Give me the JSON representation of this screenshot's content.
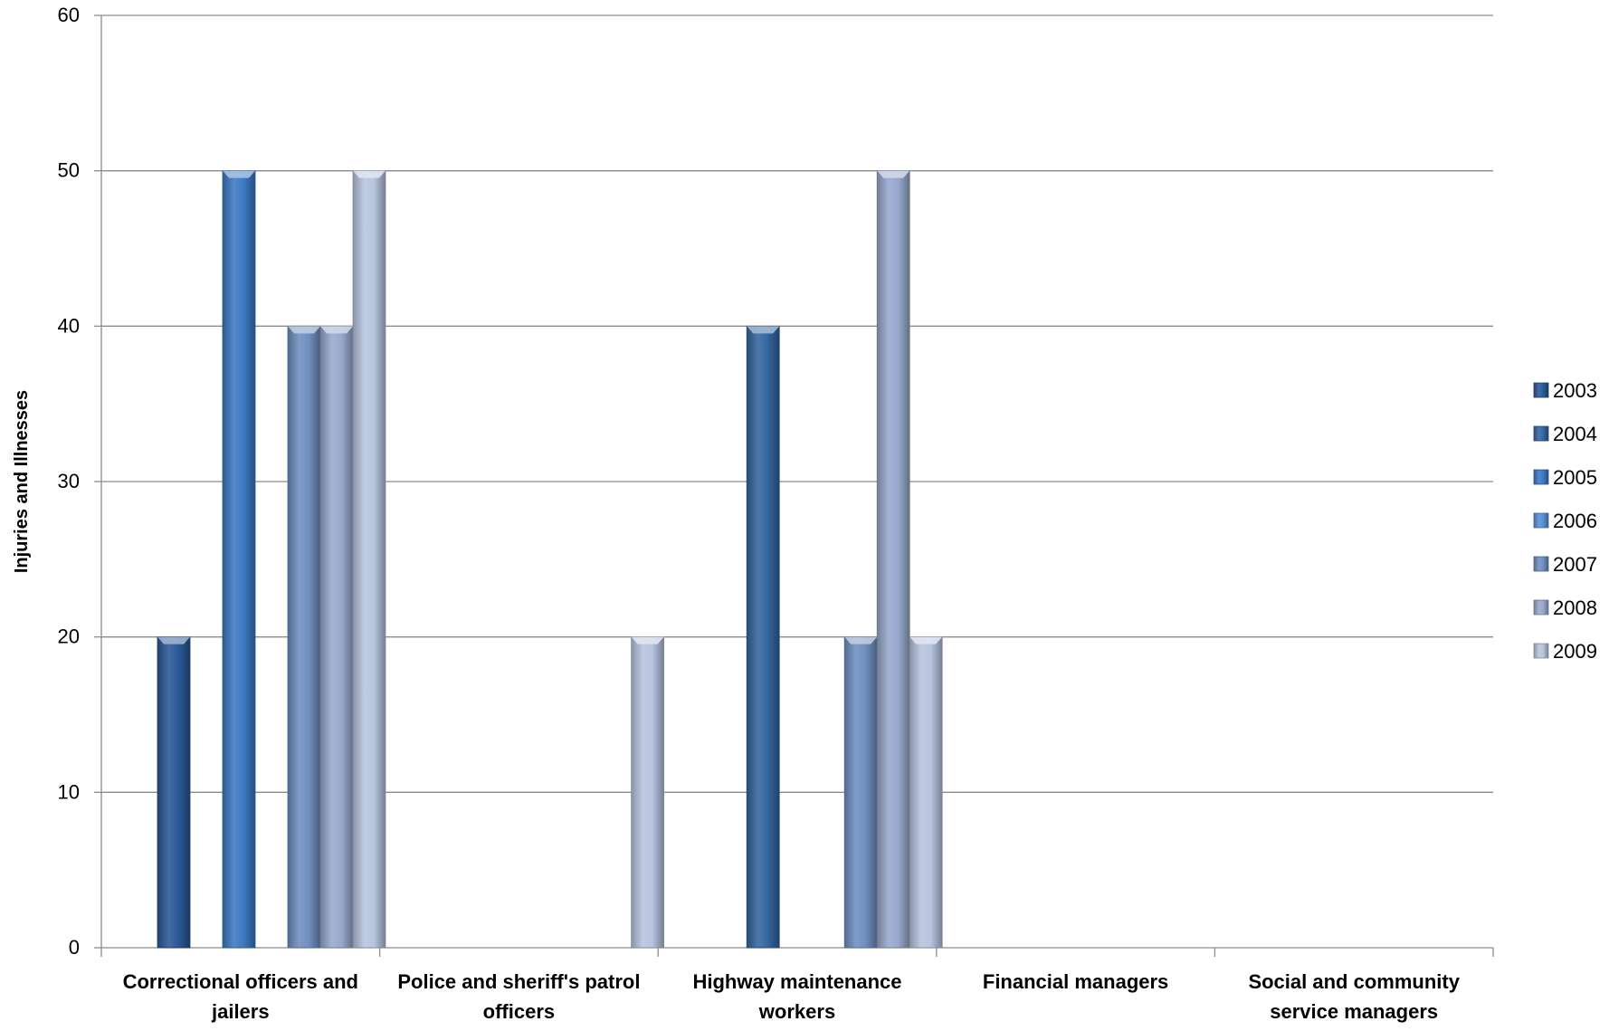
{
  "chart_data": {
    "type": "bar",
    "ylabel": "Injuries and Illnesses",
    "xlabel": "",
    "ylim": [
      0,
      60
    ],
    "yticks": [
      0,
      10,
      20,
      30,
      40,
      50,
      60
    ],
    "grid": "horizontal",
    "legend_position": "right",
    "categories": [
      "Correctional officers and jailers",
      "Police and sheriff's patrol officers",
      "Highway maintenance workers",
      "Financial managers",
      "Social and community service managers"
    ],
    "category_label_lines": [
      [
        "Correctional officers and",
        "jailers"
      ],
      [
        "Police and sheriff's patrol",
        "officers"
      ],
      [
        "Highway maintenance",
        "workers"
      ],
      [
        "Financial managers"
      ],
      [
        "Social and community",
        "service managers"
      ]
    ],
    "series": [
      {
        "name": "2003",
        "color": "#2a5896",
        "values": [
          20,
          0,
          0,
          0,
          0
        ]
      },
      {
        "name": "2004",
        "color": "#34669f",
        "values": [
          0,
          0,
          40,
          0,
          0
        ]
      },
      {
        "name": "2005",
        "color": "#3d79c3",
        "values": [
          50,
          0,
          0,
          0,
          0
        ]
      },
      {
        "name": "2006",
        "color": "#5b8fd4",
        "values": [
          0,
          0,
          0,
          0,
          0
        ]
      },
      {
        "name": "2007",
        "color": "#6f8fbf",
        "values": [
          40,
          0,
          20,
          0,
          0
        ]
      },
      {
        "name": "2008",
        "color": "#97a9cd",
        "values": [
          40,
          0,
          50,
          0,
          0
        ]
      },
      {
        "name": "2009",
        "color": "#b7c4df",
        "values": [
          50,
          20,
          20,
          0,
          0
        ]
      }
    ]
  }
}
